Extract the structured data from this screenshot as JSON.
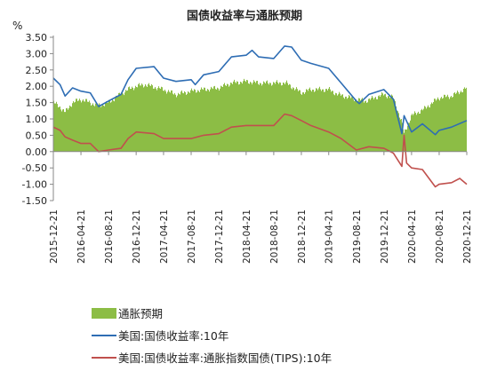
{
  "chart_data": {
    "type": "line",
    "title": "国债收益率与通胀预期",
    "unit": "%",
    "ylim": [
      -1.5,
      3.5
    ],
    "ytick_labels": [
      "3.50",
      "3.00",
      "2.50",
      "2.00",
      "1.50",
      "1.00",
      "0.50",
      "0.00",
      "-0.50",
      "-1.00",
      "-1.50"
    ],
    "ytick_values": [
      3.5,
      3.0,
      2.5,
      2.0,
      1.5,
      1.0,
      0.5,
      0.0,
      -0.5,
      -1.0,
      -1.5
    ],
    "x_range": [
      "2015-12-21",
      "2020-12-21"
    ],
    "xtick_labels": [
      "2015-12-21",
      "2016-04-21",
      "2016-08-21",
      "2016-12-21",
      "2017-04-21",
      "2017-08-21",
      "2017-12-21",
      "2018-04-21",
      "2018-08-21",
      "2018-12-21",
      "2019-04-21",
      "2019-08-21",
      "2019-12-21",
      "2020-04-21",
      "2020-08-21",
      "2020-12-21"
    ],
    "grid": false,
    "legend_position": "bottom-left",
    "series": [
      {
        "name": "通胀预期",
        "kind": "area",
        "color": "#8cbd45",
        "points": [
          [
            "2015-12-21",
            1.5
          ],
          [
            "2016-01-15",
            1.4
          ],
          [
            "2016-02-11",
            1.2
          ],
          [
            "2016-03-15",
            1.5
          ],
          [
            "2016-04-21",
            1.6
          ],
          [
            "2016-06-01",
            1.5
          ],
          [
            "2016-07-05",
            1.4
          ],
          [
            "2016-08-21",
            1.5
          ],
          [
            "2016-10-01",
            1.7
          ],
          [
            "2016-11-15",
            1.9
          ],
          [
            "2016-12-21",
            2.0
          ],
          [
            "2017-02-01",
            2.05
          ],
          [
            "2017-04-21",
            1.9
          ],
          [
            "2017-06-15",
            1.75
          ],
          [
            "2017-08-21",
            1.85
          ],
          [
            "2017-10-15",
            1.9
          ],
          [
            "2017-12-21",
            1.95
          ],
          [
            "2018-02-15",
            2.1
          ],
          [
            "2018-04-21",
            2.15
          ],
          [
            "2018-06-15",
            2.1
          ],
          [
            "2018-08-21",
            2.1
          ],
          [
            "2018-10-15",
            2.1
          ],
          [
            "2018-12-21",
            1.8
          ],
          [
            "2019-02-01",
            1.9
          ],
          [
            "2019-04-21",
            1.9
          ],
          [
            "2019-06-01",
            1.75
          ],
          [
            "2019-08-21",
            1.6
          ],
          [
            "2019-10-01",
            1.55
          ],
          [
            "2019-12-21",
            1.75
          ],
          [
            "2020-02-01",
            1.65
          ],
          [
            "2020-03-09",
            0.9
          ],
          [
            "2020-03-19",
            0.55
          ],
          [
            "2020-04-21",
            1.1
          ],
          [
            "2020-06-15",
            1.3
          ],
          [
            "2020-08-21",
            1.65
          ],
          [
            "2020-10-15",
            1.7
          ],
          [
            "2020-12-21",
            1.95
          ]
        ]
      },
      {
        "name": "美国:国债收益率:10年",
        "kind": "line",
        "color": "#2e6db4",
        "points": [
          [
            "2015-12-21",
            2.25
          ],
          [
            "2016-01-20",
            2.05
          ],
          [
            "2016-02-11",
            1.7
          ],
          [
            "2016-03-15",
            1.95
          ],
          [
            "2016-04-21",
            1.85
          ],
          [
            "2016-06-01",
            1.8
          ],
          [
            "2016-07-08",
            1.38
          ],
          [
            "2016-08-21",
            1.55
          ],
          [
            "2016-10-15",
            1.75
          ],
          [
            "2016-11-15",
            2.2
          ],
          [
            "2016-12-21",
            2.55
          ],
          [
            "2017-03-10",
            2.6
          ],
          [
            "2017-04-21",
            2.25
          ],
          [
            "2017-06-15",
            2.15
          ],
          [
            "2017-08-21",
            2.2
          ],
          [
            "2017-09-08",
            2.05
          ],
          [
            "2017-10-15",
            2.35
          ],
          [
            "2017-12-21",
            2.45
          ],
          [
            "2018-02-15",
            2.9
          ],
          [
            "2018-04-21",
            2.95
          ],
          [
            "2018-05-17",
            3.1
          ],
          [
            "2018-06-15",
            2.9
          ],
          [
            "2018-08-21",
            2.85
          ],
          [
            "2018-10-08",
            3.23
          ],
          [
            "2018-11-08",
            3.2
          ],
          [
            "2018-12-21",
            2.8
          ],
          [
            "2019-02-01",
            2.7
          ],
          [
            "2019-04-21",
            2.55
          ],
          [
            "2019-06-15",
            2.1
          ],
          [
            "2019-08-21",
            1.55
          ],
          [
            "2019-09-03",
            1.47
          ],
          [
            "2019-10-15",
            1.75
          ],
          [
            "2019-12-21",
            1.9
          ],
          [
            "2020-02-01",
            1.6
          ],
          [
            "2020-03-09",
            0.55
          ],
          [
            "2020-03-19",
            1.1
          ],
          [
            "2020-04-21",
            0.6
          ],
          [
            "2020-06-08",
            0.85
          ],
          [
            "2020-08-04",
            0.52
          ],
          [
            "2020-08-21",
            0.65
          ],
          [
            "2020-10-15",
            0.75
          ],
          [
            "2020-12-21",
            0.95
          ]
        ]
      },
      {
        "name": "美国:国债收益率:通胀指数国债(TIPS):10年",
        "kind": "line",
        "color": "#c0504d",
        "points": [
          [
            "2015-12-21",
            0.75
          ],
          [
            "2016-01-20",
            0.65
          ],
          [
            "2016-02-11",
            0.45
          ],
          [
            "2016-03-15",
            0.35
          ],
          [
            "2016-04-21",
            0.25
          ],
          [
            "2016-06-01",
            0.25
          ],
          [
            "2016-07-08",
            0.0
          ],
          [
            "2016-08-21",
            0.05
          ],
          [
            "2016-10-15",
            0.1
          ],
          [
            "2016-11-15",
            0.4
          ],
          [
            "2016-12-21",
            0.6
          ],
          [
            "2017-03-10",
            0.55
          ],
          [
            "2017-04-21",
            0.4
          ],
          [
            "2017-06-15",
            0.4
          ],
          [
            "2017-08-21",
            0.4
          ],
          [
            "2017-10-15",
            0.5
          ],
          [
            "2017-12-21",
            0.55
          ],
          [
            "2018-02-15",
            0.75
          ],
          [
            "2018-04-21",
            0.8
          ],
          [
            "2018-06-15",
            0.8
          ],
          [
            "2018-08-21",
            0.8
          ],
          [
            "2018-10-08",
            1.15
          ],
          [
            "2018-11-08",
            1.1
          ],
          [
            "2018-12-21",
            0.95
          ],
          [
            "2019-02-01",
            0.8
          ],
          [
            "2019-04-21",
            0.6
          ],
          [
            "2019-06-15",
            0.4
          ],
          [
            "2019-08-21",
            0.05
          ],
          [
            "2019-10-15",
            0.15
          ],
          [
            "2019-12-21",
            0.1
          ],
          [
            "2020-02-01",
            -0.05
          ],
          [
            "2020-03-09",
            -0.45
          ],
          [
            "2020-03-19",
            0.5
          ],
          [
            "2020-03-30",
            -0.35
          ],
          [
            "2020-04-21",
            -0.5
          ],
          [
            "2020-06-08",
            -0.55
          ],
          [
            "2020-08-04",
            -1.08
          ],
          [
            "2020-08-21",
            -1.0
          ],
          [
            "2020-10-15",
            -0.95
          ],
          [
            "2020-11-20",
            -0.82
          ],
          [
            "2020-12-21",
            -1.0
          ]
        ]
      }
    ]
  }
}
